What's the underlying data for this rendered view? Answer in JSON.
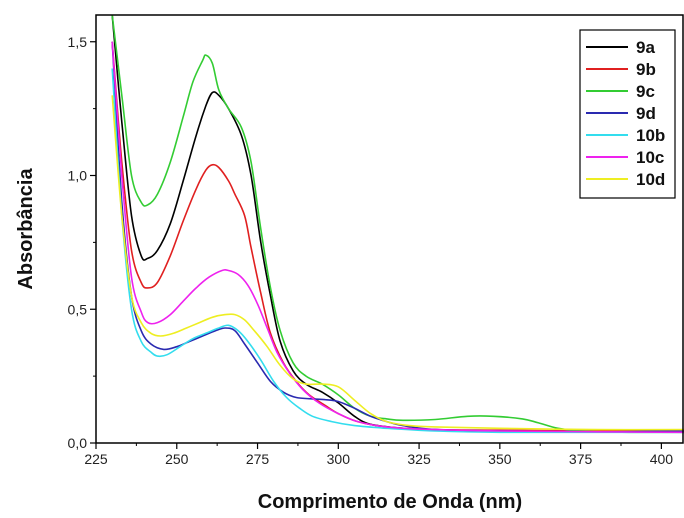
{
  "chart_data": {
    "type": "line",
    "xlabel": "Comprimento de Onda (nm)",
    "ylabel": "Absorbância",
    "xlim": [
      225,
      407
    ],
    "ylim": [
      0,
      1.6
    ],
    "x_ticks": [
      225,
      250,
      275,
      300,
      325,
      350,
      375,
      400
    ],
    "x_tick_labels": [
      "225",
      "250",
      "275",
      "300",
      "325",
      "350",
      "375",
      "400"
    ],
    "y_ticks": [
      0,
      0.5,
      1.0,
      1.5
    ],
    "y_tick_labels": [
      "0,0",
      "0,5",
      "1,0",
      "1,5"
    ],
    "legend_position": "top-right",
    "grid": false,
    "series": [
      {
        "name": "9a",
        "color": "#000000",
        "points": [
          [
            230,
            1.6
          ],
          [
            233,
            1.2
          ],
          [
            236,
            0.85
          ],
          [
            239,
            0.7
          ],
          [
            241,
            0.69
          ],
          [
            244,
            0.72
          ],
          [
            248,
            0.82
          ],
          [
            252,
            0.98
          ],
          [
            256,
            1.15
          ],
          [
            259,
            1.26
          ],
          [
            261,
            1.31
          ],
          [
            263,
            1.3
          ],
          [
            266,
            1.25
          ],
          [
            270,
            1.15
          ],
          [
            273,
            1.0
          ],
          [
            276,
            0.75
          ],
          [
            279,
            0.55
          ],
          [
            282,
            0.38
          ],
          [
            286,
            0.27
          ],
          [
            290,
            0.22
          ],
          [
            295,
            0.19
          ],
          [
            300,
            0.15
          ],
          [
            305,
            0.1
          ],
          [
            310,
            0.07
          ],
          [
            320,
            0.055
          ],
          [
            330,
            0.05
          ],
          [
            340,
            0.045
          ],
          [
            360,
            0.045
          ],
          [
            380,
            0.042
          ],
          [
            407,
            0.045
          ]
        ]
      },
      {
        "name": "9b",
        "color": "#e02020",
        "points": [
          [
            230,
            1.5
          ],
          [
            233,
            1.05
          ],
          [
            236,
            0.72
          ],
          [
            239,
            0.6
          ],
          [
            241,
            0.58
          ],
          [
            244,
            0.6
          ],
          [
            248,
            0.7
          ],
          [
            252,
            0.83
          ],
          [
            256,
            0.95
          ],
          [
            259,
            1.02
          ],
          [
            261,
            1.04
          ],
          [
            263,
            1.03
          ],
          [
            266,
            0.98
          ],
          [
            268,
            0.93
          ],
          [
            271,
            0.85
          ],
          [
            273,
            0.73
          ],
          [
            276,
            0.56
          ],
          [
            279,
            0.41
          ],
          [
            283,
            0.3
          ],
          [
            287,
            0.23
          ],
          [
            291,
            0.18
          ],
          [
            296,
            0.14
          ],
          [
            300,
            0.11
          ],
          [
            306,
            0.08
          ],
          [
            315,
            0.06
          ],
          [
            330,
            0.05
          ],
          [
            350,
            0.048
          ],
          [
            380,
            0.045
          ],
          [
            407,
            0.045
          ]
        ]
      },
      {
        "name": "9c",
        "color": "#33cc33",
        "points": [
          [
            230,
            1.6
          ],
          [
            233,
            1.3
          ],
          [
            236,
            1.0
          ],
          [
            239,
            0.9
          ],
          [
            241,
            0.89
          ],
          [
            244,
            0.93
          ],
          [
            248,
            1.05
          ],
          [
            252,
            1.22
          ],
          [
            255,
            1.35
          ],
          [
            258,
            1.43
          ],
          [
            259,
            1.45
          ],
          [
            261,
            1.42
          ],
          [
            263,
            1.32
          ],
          [
            266,
            1.25
          ],
          [
            270,
            1.18
          ],
          [
            273,
            1.05
          ],
          [
            276,
            0.8
          ],
          [
            279,
            0.58
          ],
          [
            282,
            0.42
          ],
          [
            286,
            0.3
          ],
          [
            290,
            0.25
          ],
          [
            295,
            0.22
          ],
          [
            300,
            0.18
          ],
          [
            305,
            0.13
          ],
          [
            310,
            0.1
          ],
          [
            315,
            0.09
          ],
          [
            320,
            0.085
          ],
          [
            330,
            0.088
          ],
          [
            340,
            0.1
          ],
          [
            348,
            0.1
          ],
          [
            357,
            0.09
          ],
          [
            362,
            0.075
          ],
          [
            368,
            0.055
          ],
          [
            375,
            0.045
          ],
          [
            390,
            0.04
          ],
          [
            407,
            0.04
          ]
        ]
      },
      {
        "name": "9d",
        "color": "#2a2ab0",
        "points": [
          [
            230,
            1.5
          ],
          [
            233,
            0.9
          ],
          [
            236,
            0.55
          ],
          [
            239,
            0.42
          ],
          [
            242,
            0.37
          ],
          [
            246,
            0.35
          ],
          [
            250,
            0.36
          ],
          [
            254,
            0.38
          ],
          [
            258,
            0.4
          ],
          [
            262,
            0.42
          ],
          [
            265,
            0.43
          ],
          [
            268,
            0.42
          ],
          [
            271,
            0.37
          ],
          [
            275,
            0.3
          ],
          [
            279,
            0.23
          ],
          [
            283,
            0.19
          ],
          [
            287,
            0.17
          ],
          [
            292,
            0.165
          ],
          [
            296,
            0.162
          ],
          [
            300,
            0.155
          ],
          [
            305,
            0.13
          ],
          [
            310,
            0.1
          ],
          [
            315,
            0.08
          ],
          [
            320,
            0.065
          ],
          [
            330,
            0.05
          ],
          [
            350,
            0.045
          ],
          [
            380,
            0.042
          ],
          [
            407,
            0.045
          ]
        ]
      },
      {
        "name": "10b",
        "color": "#33ddee",
        "points": [
          [
            230,
            1.4
          ],
          [
            233,
            0.85
          ],
          [
            236,
            0.5
          ],
          [
            239,
            0.38
          ],
          [
            242,
            0.34
          ],
          [
            244,
            0.325
          ],
          [
            247,
            0.33
          ],
          [
            251,
            0.36
          ],
          [
            255,
            0.39
          ],
          [
            259,
            0.41
          ],
          [
            263,
            0.43
          ],
          [
            266,
            0.44
          ],
          [
            269,
            0.42
          ],
          [
            272,
            0.38
          ],
          [
            276,
            0.31
          ],
          [
            280,
            0.23
          ],
          [
            284,
            0.17
          ],
          [
            288,
            0.13
          ],
          [
            292,
            0.1
          ],
          [
            298,
            0.08
          ],
          [
            305,
            0.065
          ],
          [
            315,
            0.055
          ],
          [
            330,
            0.045
          ],
          [
            350,
            0.04
          ],
          [
            380,
            0.04
          ],
          [
            407,
            0.04
          ]
        ]
      },
      {
        "name": "10c",
        "color": "#ee22ee",
        "points": [
          [
            230,
            1.5
          ],
          [
            233,
            1.0
          ],
          [
            236,
            0.62
          ],
          [
            239,
            0.49
          ],
          [
            241,
            0.45
          ],
          [
            244,
            0.45
          ],
          [
            248,
            0.48
          ],
          [
            252,
            0.53
          ],
          [
            256,
            0.58
          ],
          [
            260,
            0.62
          ],
          [
            264,
            0.645
          ],
          [
            266,
            0.645
          ],
          [
            269,
            0.63
          ],
          [
            272,
            0.59
          ],
          [
            275,
            0.52
          ],
          [
            278,
            0.43
          ],
          [
            281,
            0.34
          ],
          [
            285,
            0.26
          ],
          [
            289,
            0.2
          ],
          [
            294,
            0.15
          ],
          [
            300,
            0.11
          ],
          [
            306,
            0.08
          ],
          [
            315,
            0.06
          ],
          [
            330,
            0.05
          ],
          [
            350,
            0.045
          ],
          [
            380,
            0.042
          ],
          [
            407,
            0.04
          ]
        ]
      },
      {
        "name": "10d",
        "color": "#eeee22",
        "points": [
          [
            230,
            1.3
          ],
          [
            233,
            0.85
          ],
          [
            236,
            0.55
          ],
          [
            239,
            0.45
          ],
          [
            242,
            0.41
          ],
          [
            245,
            0.4
          ],
          [
            249,
            0.41
          ],
          [
            253,
            0.43
          ],
          [
            257,
            0.45
          ],
          [
            261,
            0.47
          ],
          [
            265,
            0.48
          ],
          [
            268,
            0.48
          ],
          [
            271,
            0.46
          ],
          [
            274,
            0.42
          ],
          [
            278,
            0.36
          ],
          [
            282,
            0.29
          ],
          [
            286,
            0.24
          ],
          [
            290,
            0.22
          ],
          [
            295,
            0.22
          ],
          [
            300,
            0.21
          ],
          [
            305,
            0.16
          ],
          [
            310,
            0.11
          ],
          [
            315,
            0.08
          ],
          [
            322,
            0.065
          ],
          [
            330,
            0.06
          ],
          [
            350,
            0.055
          ],
          [
            380,
            0.05
          ],
          [
            407,
            0.05
          ]
        ]
      }
    ]
  }
}
